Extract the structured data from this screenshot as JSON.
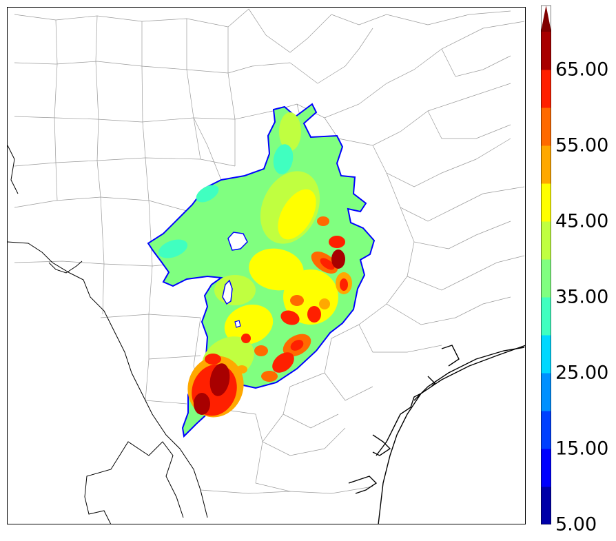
{
  "map": {
    "projection": "lambert-conformal",
    "region": "Central / South Texas",
    "layers": [
      "county-borders",
      "state-border",
      "coastline",
      "filled-contour-field"
    ]
  },
  "colorbar": {
    "extend": "max",
    "labels": [
      "5.00",
      "15.00",
      "25.00",
      "35.00",
      "45.00",
      "55.00",
      "65.00"
    ],
    "levels": [
      5,
      10,
      15,
      20,
      25,
      30,
      35,
      40,
      45,
      50,
      55,
      60,
      65,
      70
    ],
    "colors": [
      "#0000a8",
      "#0000ff",
      "#0040ff",
      "#0090ff",
      "#00d8ff",
      "#40ffc0",
      "#80ff80",
      "#c0ff40",
      "#ffff00",
      "#ffa800",
      "#ff6a00",
      "#ff2000",
      "#a80000"
    ],
    "extend_color": "#800000"
  },
  "field_colors": {
    "edge": "#0000ff",
    "teal": "#40ffc0",
    "green": "#80ff80",
    "lime": "#c0ff40",
    "yellow": "#ffff00",
    "orange": "#ffa800",
    "darkorange": "#ff6a00",
    "red": "#ff2000",
    "darkred": "#a80000"
  }
}
